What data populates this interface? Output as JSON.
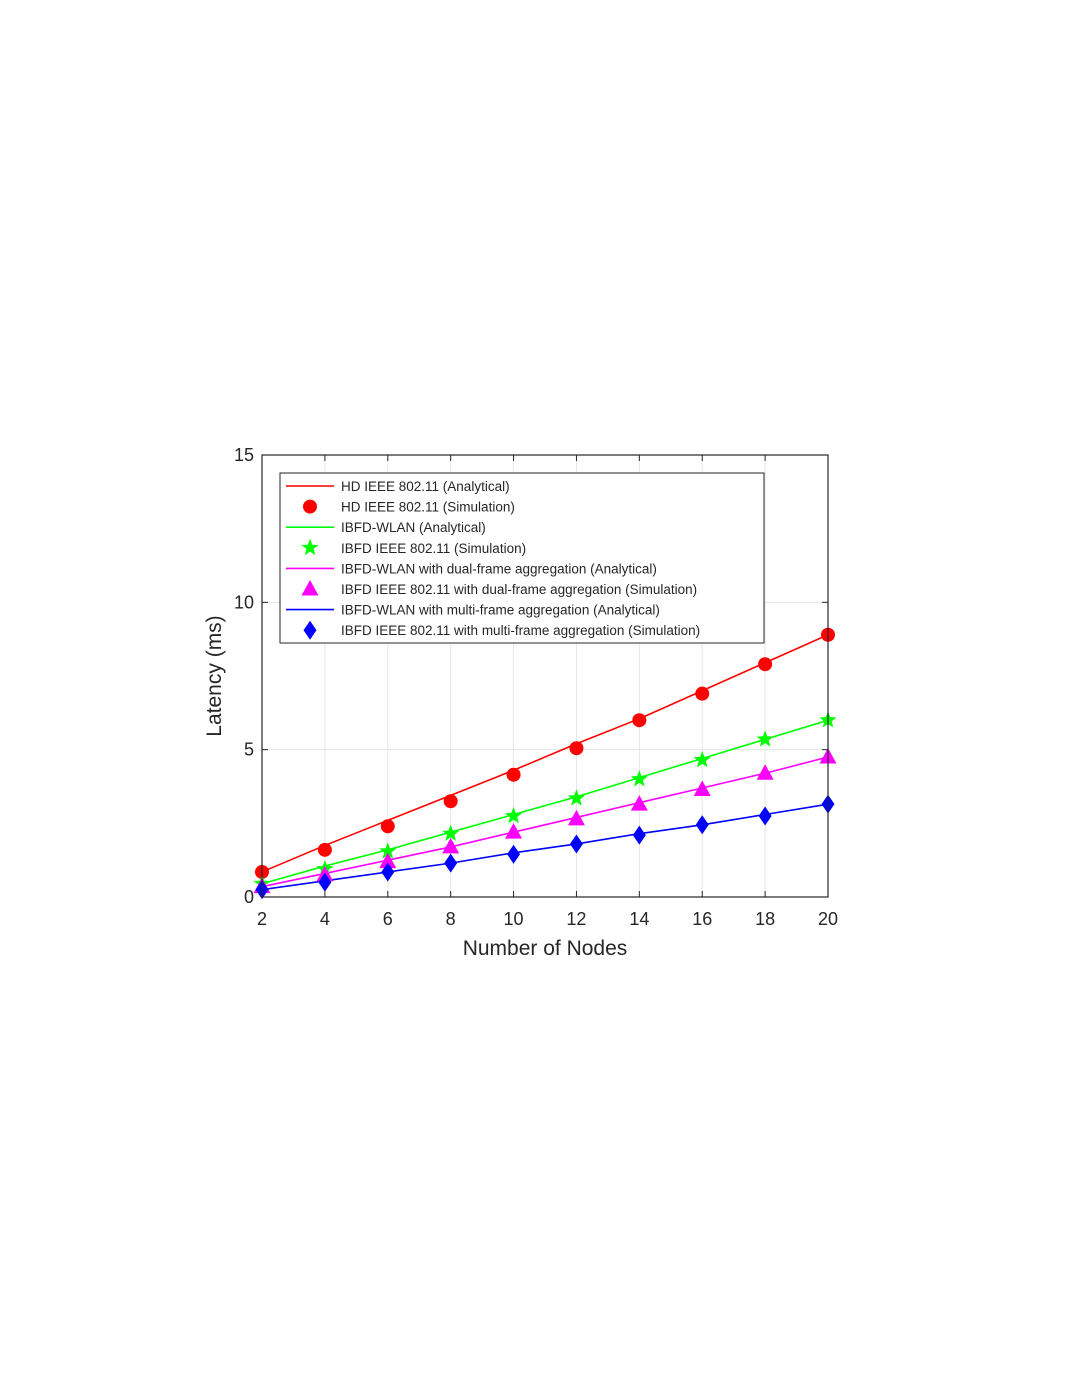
{
  "chart_data": {
    "type": "line",
    "title": "",
    "xlabel": "Number of Nodes",
    "ylabel": "Latency (ms)",
    "xlim": [
      2,
      20
    ],
    "ylim": [
      0,
      15
    ],
    "xticks": [
      "2",
      "4",
      "6",
      "8",
      "10",
      "12",
      "14",
      "16",
      "18",
      "20"
    ],
    "yticks": [
      "0",
      "5",
      "10",
      "15"
    ],
    "grid": true,
    "legend_position": "top-left",
    "x": [
      2,
      4,
      6,
      8,
      10,
      12,
      14,
      16,
      18,
      20
    ],
    "series": [
      {
        "name": "HD IEEE 802.11 (Analytical)",
        "kind": "line",
        "color": "#ff0000",
        "values": [
          0.85,
          1.75,
          2.6,
          3.45,
          4.3,
          5.2,
          6.05,
          7.0,
          7.95,
          8.9
        ]
      },
      {
        "name": "HD IEEE 802.11 (Simulation)",
        "kind": "marker",
        "marker": "circle",
        "color": "#ff0000",
        "values": [
          0.85,
          1.6,
          2.4,
          3.25,
          4.15,
          5.05,
          6.0,
          6.9,
          7.9,
          8.9
        ]
      },
      {
        "name": "IBFD-WLAN (Analytical)",
        "kind": "line",
        "color": "#00ff00",
        "values": [
          0.45,
          1.05,
          1.6,
          2.2,
          2.8,
          3.4,
          4.05,
          4.7,
          5.35,
          6.0
        ]
      },
      {
        "name": "IBFD IEEE 802.11 (Simulation)",
        "kind": "marker",
        "marker": "star",
        "color": "#00ff00",
        "values": [
          0.45,
          0.95,
          1.55,
          2.15,
          2.75,
          3.35,
          4.0,
          4.65,
          5.35,
          6.0
        ]
      },
      {
        "name": "IBFD-WLAN with dual-frame aggregation (Analytical)",
        "kind": "line",
        "color": "#ff00ff",
        "values": [
          0.35,
          0.8,
          1.25,
          1.7,
          2.2,
          2.7,
          3.2,
          3.7,
          4.2,
          4.75
        ]
      },
      {
        "name": "IBFD IEEE 802.11 with dual-frame aggregation (Simulation)",
        "kind": "marker",
        "marker": "triangle",
        "color": "#ff00ff",
        "values": [
          0.35,
          0.75,
          1.2,
          1.7,
          2.2,
          2.65,
          3.15,
          3.65,
          4.2,
          4.75
        ]
      },
      {
        "name": "IBFD-WLAN with multi-frame aggregation (Analytical)",
        "kind": "line",
        "color": "#0000ff",
        "values": [
          0.25,
          0.55,
          0.85,
          1.15,
          1.5,
          1.8,
          2.15,
          2.45,
          2.8,
          3.15
        ]
      },
      {
        "name": "IBFD IEEE 802.11 with multi-frame aggregation (Simulation)",
        "kind": "marker",
        "marker": "diamond",
        "color": "#0000ff",
        "values": [
          0.25,
          0.5,
          0.85,
          1.15,
          1.45,
          1.8,
          2.1,
          2.45,
          2.75,
          3.15
        ]
      }
    ]
  }
}
